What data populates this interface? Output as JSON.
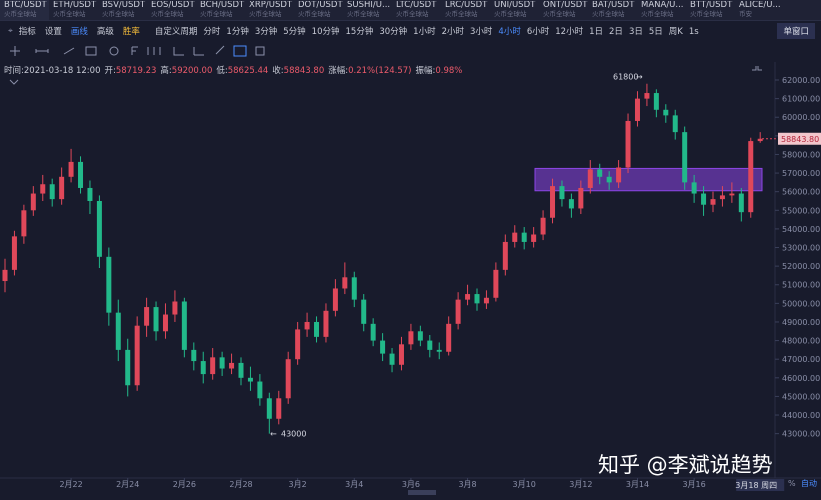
{
  "tabs": [
    {
      "symbol": "BTC/USDT",
      "exchange": "火币全球站"
    },
    {
      "symbol": "ETH/USDT",
      "exchange": "火币全球站"
    },
    {
      "symbol": "BSV/USDT",
      "exchange": "火币全球站"
    },
    {
      "symbol": "EOS/USDT",
      "exchange": "火币全球站"
    },
    {
      "symbol": "BCH/USDT",
      "exchange": "火币全球站"
    },
    {
      "symbol": "XRP/USDT",
      "exchange": "火币全球站"
    },
    {
      "symbol": "DOT/USDT",
      "exchange": "火币全球站"
    },
    {
      "symbol": "SUSHI/U...",
      "exchange": "火币全球站"
    },
    {
      "symbol": "LTC/USDT",
      "exchange": "火币全球站"
    },
    {
      "symbol": "LRC/USDT",
      "exchange": "火币全球站"
    },
    {
      "symbol": "UNI/USDT",
      "exchange": "火币全球站"
    },
    {
      "symbol": "ONT/USDT",
      "exchange": "火币全球站"
    },
    {
      "symbol": "BAT/USDT",
      "exchange": "火币全球站"
    },
    {
      "symbol": "MANA/U...",
      "exchange": "火币全球站"
    },
    {
      "symbol": "BTT/USDT",
      "exchange": "火币全球站"
    },
    {
      "symbol": "ALICE/U...",
      "exchange": "币安"
    }
  ],
  "tools": [
    "指标",
    "设置",
    "画线",
    "高级",
    "胜率"
  ],
  "custom_period": "自定义周期",
  "periods": [
    "分时",
    "1分钟",
    "3分钟",
    "5分钟",
    "10分钟",
    "15分钟",
    "30分钟",
    "1小时",
    "2小时",
    "3小时",
    "4小时",
    "6小时",
    "12小时",
    "1日",
    "2日",
    "3日",
    "5日",
    "周K",
    "1s"
  ],
  "active_period": 10,
  "window_button": "单窗口",
  "header": [
    {
      "label": "时间:",
      "value": "2021-03-18 12:00"
    },
    {
      "label": "开:",
      "value": "58719.23"
    },
    {
      "label": "高:",
      "value": "59200.00"
    },
    {
      "label": "低:",
      "value": "58625.44"
    },
    {
      "label": "收:",
      "value": "58843.80"
    },
    {
      "label": "涨幅:",
      "value": "0.21%(124.57)"
    },
    {
      "label": "振幅:",
      "value": "0.98%"
    }
  ],
  "watermark": "知乎 @李斌说趋势",
  "bottom_right": [
    "%",
    "自动"
  ],
  "chart_data": {
    "type": "candlestick",
    "up_color": "#e0485a",
    "down_color": "#22b98a",
    "zone_color": "#8d45e6",
    "ylim": [
      42100,
      63000
    ],
    "yticks": [
      {
        "value": 62000,
        "label": "62000.00"
      },
      {
        "value": 61000,
        "label": "61000.00"
      },
      {
        "value": 60000,
        "label": "60000.00"
      },
      {
        "value": 59000,
        "label": "59000.00"
      },
      {
        "value": 58000,
        "label": "58000.00"
      },
      {
        "value": 57000,
        "label": "57000.00"
      },
      {
        "value": 56000,
        "label": "56000.00"
      },
      {
        "value": 55000,
        "label": "55000.00"
      },
      {
        "value": 54000,
        "label": "54000.00"
      },
      {
        "value": 53000,
        "label": "53000.00"
      },
      {
        "value": 52000,
        "label": "52000.00"
      },
      {
        "value": 51000,
        "label": "51000.00"
      },
      {
        "value": 50000,
        "label": "50000.00"
      },
      {
        "value": 49000,
        "label": "49000.00"
      },
      {
        "value": 48000,
        "label": "48000.00"
      },
      {
        "value": 47000,
        "label": "47000.00"
      },
      {
        "value": 46000,
        "label": "46000.00"
      },
      {
        "value": 45000,
        "label": "45000.00"
      },
      {
        "value": 44000,
        "label": "44000.00"
      },
      {
        "value": 43000,
        "label": "43000.00"
      }
    ],
    "xticks": [
      {
        "value": 7,
        "label": "2月22"
      },
      {
        "value": 13,
        "label": "2月24"
      },
      {
        "value": 19,
        "label": "2月26"
      },
      {
        "value": 25,
        "label": "2月28"
      },
      {
        "value": 31,
        "label": "3月2"
      },
      {
        "value": 37,
        "label": "3月4"
      },
      {
        "value": 43,
        "label": "3月6"
      },
      {
        "value": 49,
        "label": "3月8"
      },
      {
        "value": 55,
        "label": "3月10"
      },
      {
        "value": 61,
        "label": "3月12"
      },
      {
        "value": 67,
        "label": "3月14"
      },
      {
        "value": 73,
        "label": "3月16"
      }
    ],
    "crosshair_label": "3月18 周四",
    "last_price": {
      "value": 58843.8,
      "label": "58843.80"
    },
    "high_mark": 61800,
    "low_mark": 43000,
    "zone": [
      56050,
      57250
    ],
    "candles": [
      [
        51200,
        52400,
        50600,
        51800
      ],
      [
        51800,
        53900,
        51500,
        53600
      ],
      [
        53600,
        55300,
        53200,
        55000
      ],
      [
        55000,
        56300,
        54700,
        55900
      ],
      [
        55900,
        56900,
        55500,
        56400
      ],
      [
        56400,
        56700,
        55200,
        55600
      ],
      [
        55600,
        57300,
        55300,
        56800
      ],
      [
        56800,
        58300,
        56500,
        57600
      ],
      [
        57600,
        57900,
        55900,
        56200
      ],
      [
        56200,
        56600,
        54800,
        55500
      ],
      [
        55500,
        55800,
        51900,
        52500
      ],
      [
        52500,
        53000,
        48800,
        49500
      ],
      [
        49500,
        50200,
        46900,
        47500
      ],
      [
        47500,
        48100,
        45000,
        45600
      ],
      [
        45600,
        49300,
        45300,
        48800
      ],
      [
        48800,
        50300,
        48200,
        49800
      ],
      [
        49800,
        50100,
        48000,
        48500
      ],
      [
        48500,
        50000,
        48100,
        49400
      ],
      [
        49400,
        50700,
        49000,
        50100
      ],
      [
        50100,
        50300,
        47100,
        47500
      ],
      [
        47500,
        47900,
        46400,
        46900
      ],
      [
        46900,
        47400,
        45700,
        46200
      ],
      [
        46200,
        47600,
        45900,
        47100
      ],
      [
        47100,
        47400,
        46100,
        46500
      ],
      [
        46500,
        47300,
        46200,
        46800
      ],
      [
        46800,
        47100,
        45600,
        46000
      ],
      [
        46000,
        46600,
        45300,
        45800
      ],
      [
        45800,
        46200,
        44500,
        44900
      ],
      [
        44900,
        45200,
        43000,
        43800
      ],
      [
        43800,
        45300,
        43500,
        44900
      ],
      [
        44900,
        47400,
        44600,
        47000
      ],
      [
        47000,
        49000,
        46700,
        48600
      ],
      [
        48600,
        49500,
        48200,
        49000
      ],
      [
        49000,
        49300,
        47900,
        48200
      ],
      [
        48200,
        50000,
        47900,
        49600
      ],
      [
        49600,
        51300,
        49300,
        50800
      ],
      [
        50800,
        52200,
        50500,
        51400
      ],
      [
        51400,
        51700,
        49800,
        50200
      ],
      [
        50200,
        50500,
        48500,
        48900
      ],
      [
        48900,
        49200,
        47700,
        48000
      ],
      [
        48000,
        48400,
        46900,
        47300
      ],
      [
        47300,
        47600,
        46300,
        46700
      ],
      [
        46700,
        48200,
        46400,
        47800
      ],
      [
        47800,
        48900,
        47500,
        48500
      ],
      [
        48500,
        48800,
        47700,
        48000
      ],
      [
        48000,
        48300,
        47100,
        47500
      ],
      [
        47500,
        47900,
        47000,
        47400
      ],
      [
        47400,
        49300,
        47200,
        48900
      ],
      [
        48900,
        50600,
        48600,
        50200
      ],
      [
        50200,
        51000,
        49900,
        50500
      ],
      [
        50500,
        50800,
        49600,
        50000
      ],
      [
        50000,
        50700,
        49700,
        50300
      ],
      [
        50300,
        52200,
        50100,
        51800
      ],
      [
        51800,
        53700,
        51500,
        53300
      ],
      [
        53300,
        54200,
        53000,
        53800
      ],
      [
        53800,
        54100,
        52900,
        53300
      ],
      [
        53300,
        54100,
        53000,
        53700
      ],
      [
        53700,
        55000,
        53400,
        54600
      ],
      [
        54600,
        56700,
        54300,
        56300
      ],
      [
        56300,
        56600,
        55200,
        55600
      ],
      [
        55600,
        55900,
        54600,
        55100
      ],
      [
        55100,
        56600,
        54800,
        56200
      ],
      [
        56200,
        57700,
        55900,
        57200
      ],
      [
        57200,
        57500,
        56400,
        56800
      ],
      [
        56800,
        57100,
        56100,
        56500
      ],
      [
        56500,
        57700,
        56200,
        57300
      ],
      [
        57300,
        60200,
        57000,
        59800
      ],
      [
        59800,
        61400,
        59500,
        61000
      ],
      [
        61000,
        61800,
        60600,
        61300
      ],
      [
        61300,
        61500,
        60000,
        60400
      ],
      [
        60400,
        60700,
        59700,
        60100
      ],
      [
        60100,
        60400,
        58800,
        59200
      ],
      [
        59200,
        59500,
        56100,
        56500
      ],
      [
        56500,
        56900,
        55400,
        55900
      ],
      [
        55900,
        56300,
        54700,
        55300
      ],
      [
        55300,
        56000,
        54900,
        55600
      ],
      [
        55600,
        56300,
        55200,
        55800
      ],
      [
        55800,
        56500,
        55400,
        55900
      ],
      [
        55900,
        56200,
        54400,
        54900
      ],
      [
        54900,
        58900,
        54600,
        58719.23
      ],
      [
        58719.23,
        59200,
        58625.44,
        58843.8
      ]
    ]
  }
}
